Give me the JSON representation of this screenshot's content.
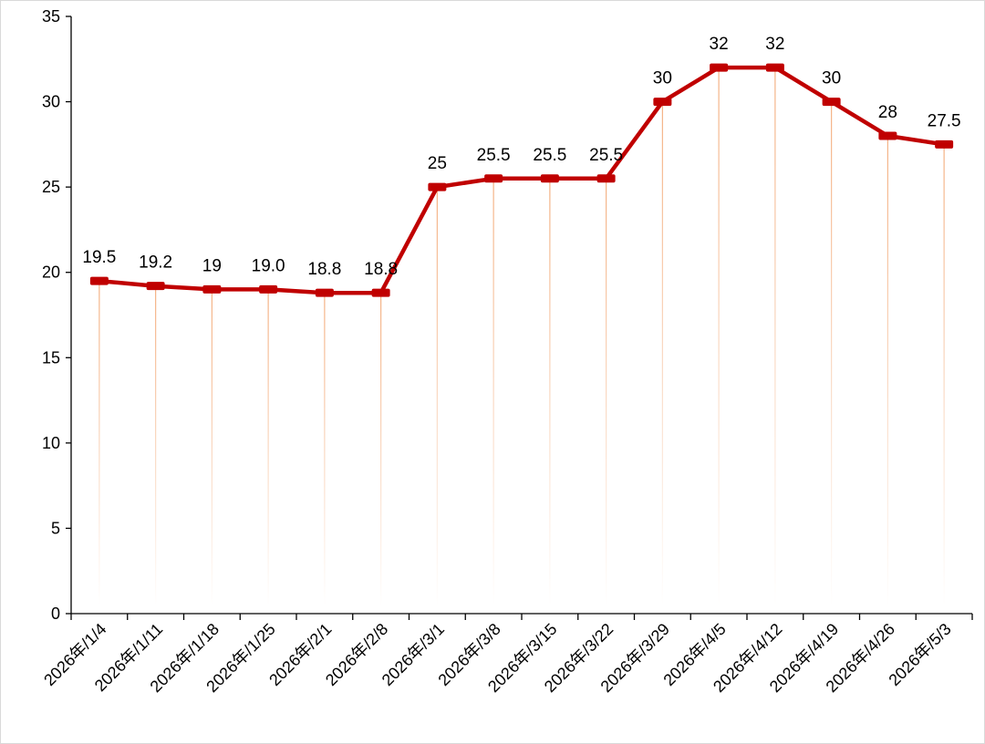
{
  "chart_data": {
    "type": "line",
    "title": "",
    "xlabel": "",
    "ylabel": "",
    "categories": [
      "2026年/1/4",
      "2026年/1/11",
      "2026年/1/18",
      "2026年/1/25",
      "2026年/2/1",
      "2026年/2/8",
      "2026年/3/1",
      "2026年/3/8",
      "2026年/3/15",
      "2026年/3/22",
      "2026年/3/29",
      "2026年/4/5",
      "2026年/4/12",
      "2026年/4/19",
      "2026年/4/26",
      "2026年/5/3"
    ],
    "series": [
      {
        "values": [
          19.5,
          19.2,
          19,
          19.0,
          18.8,
          18.8,
          25,
          25.5,
          25.5,
          25.5,
          30,
          32,
          32,
          30,
          28,
          27.5
        ],
        "labels": [
          "19.5",
          "19.2",
          "19",
          "19.0",
          "18.8",
          "18.8",
          "25",
          "25.5",
          "25.5",
          "25.5",
          "30",
          "32",
          "32",
          "30",
          "28",
          "27.5"
        ],
        "color": "#c00000"
      }
    ],
    "ylim": [
      0,
      35
    ],
    "yticks": [
      "0",
      "5",
      "10",
      "15",
      "20",
      "25",
      "30",
      "35"
    ],
    "drop_line_color": "#f4b183",
    "grid": false,
    "legend": "none"
  }
}
